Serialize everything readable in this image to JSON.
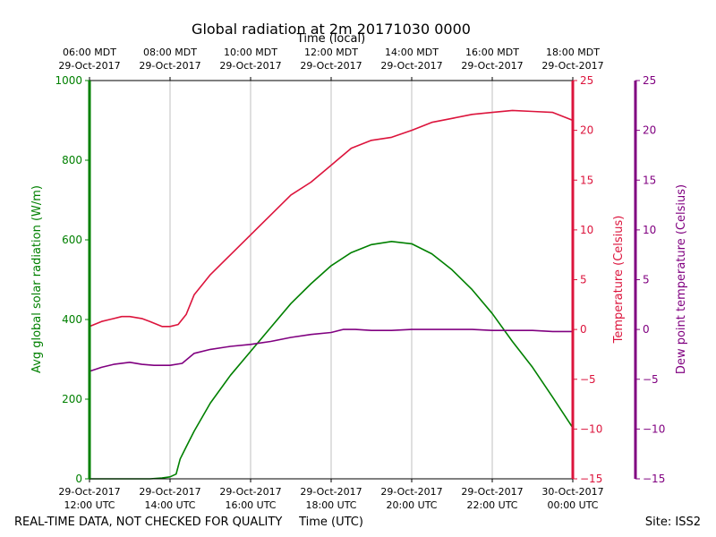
{
  "chart_data": {
    "type": "line",
    "title": "Global radiation at 2m 20171030 0000",
    "top_axis_label": "Time (local)",
    "xlabel": "Time (UTC)",
    "x_ticks_utc": [
      {
        "date": "29-Oct-2017",
        "time": "12:00 UTC"
      },
      {
        "date": "29-Oct-2017",
        "time": "14:00 UTC"
      },
      {
        "date": "29-Oct-2017",
        "time": "16:00 UTC"
      },
      {
        "date": "29-Oct-2017",
        "time": "18:00 UTC"
      },
      {
        "date": "29-Oct-2017",
        "time": "20:00 UTC"
      },
      {
        "date": "29-Oct-2017",
        "time": "22:00 UTC"
      },
      {
        "date": "30-Oct-2017",
        "time": "00:00 UTC"
      }
    ],
    "x_ticks_local": [
      {
        "time": "06:00 MDT",
        "date": "29-Oct-2017"
      },
      {
        "time": "08:00 MDT",
        "date": "29-Oct-2017"
      },
      {
        "time": "10:00 MDT",
        "date": "29-Oct-2017"
      },
      {
        "time": "12:00 MDT",
        "date": "29-Oct-2017"
      },
      {
        "time": "14:00 MDT",
        "date": "29-Oct-2017"
      },
      {
        "time": "16:00 MDT",
        "date": "29-Oct-2017"
      },
      {
        "time": "18:00 MDT",
        "date": "29-Oct-2017"
      }
    ],
    "xlim_hours_utc": [
      12,
      24
    ],
    "vertical_grid": true,
    "axes": {
      "radiation": {
        "label": "Avg global solar radiation (W/m)",
        "ylim": [
          0,
          1000
        ],
        "ticks": [
          0,
          200,
          400,
          600,
          800,
          1000
        ],
        "color": "#008000"
      },
      "temperature": {
        "label": "Temperature (Celsius)",
        "ylim": [
          -15,
          25
        ],
        "ticks": [
          -15,
          -10,
          -5,
          0,
          5,
          10,
          15,
          20,
          25
        ],
        "color": "#dc143c"
      },
      "dewpoint": {
        "label": "Dew point temperature (Celsius)",
        "ylim": [
          -15,
          25
        ],
        "ticks": [
          -15,
          -10,
          -5,
          0,
          5,
          10,
          15,
          20,
          25
        ],
        "color": "#800080"
      }
    },
    "series": [
      {
        "axis": "radiation",
        "color": "#008000",
        "x": [
          12,
          13.5,
          13.8,
          14.0,
          14.15,
          14.25,
          14.4,
          14.6,
          15.0,
          15.5,
          16.0,
          16.5,
          17.0,
          17.5,
          18.0,
          18.5,
          19.0,
          19.5,
          20.0,
          20.5,
          21.0,
          21.5,
          22.0,
          22.5,
          23.0,
          23.5,
          24.0
        ],
        "values": [
          0,
          0,
          2,
          5,
          12,
          50,
          80,
          120,
          190,
          260,
          320,
          380,
          440,
          490,
          535,
          568,
          588,
          596,
          590,
          565,
          525,
          475,
          415,
          345,
          280,
          205,
          128
        ]
      },
      {
        "axis": "temperature",
        "color": "#dc143c",
        "x": [
          12,
          12.3,
          12.5,
          12.8,
          13.0,
          13.3,
          13.5,
          13.8,
          14.0,
          14.2,
          14.4,
          14.6,
          14.8,
          15.0,
          15.5,
          16.0,
          16.5,
          17.0,
          17.5,
          18.0,
          18.5,
          19.0,
          19.5,
          20.0,
          20.5,
          21.0,
          21.5,
          22.0,
          22.5,
          23.0,
          23.5,
          24.0
        ],
        "values": [
          0.3,
          0.8,
          1.0,
          1.3,
          1.3,
          1.1,
          0.8,
          0.3,
          0.3,
          0.5,
          1.5,
          3.5,
          4.5,
          5.5,
          7.5,
          9.5,
          11.5,
          13.5,
          14.8,
          16.5,
          18.2,
          19.0,
          19.3,
          20.0,
          20.8,
          21.2,
          21.6,
          21.8,
          22.0,
          21.9,
          21.8,
          21.0
        ]
      },
      {
        "axis": "dewpoint",
        "color": "#800080",
        "x": [
          12,
          12.3,
          12.6,
          13.0,
          13.3,
          13.6,
          14.0,
          14.3,
          14.6,
          15.0,
          15.5,
          16.0,
          16.5,
          17.0,
          17.5,
          18.0,
          18.3,
          18.6,
          19.0,
          19.5,
          20.0,
          20.5,
          21.0,
          21.5,
          22.0,
          22.5,
          23.0,
          23.5,
          24.0
        ],
        "values": [
          -4.2,
          -3.8,
          -3.5,
          -3.3,
          -3.5,
          -3.6,
          -3.6,
          -3.4,
          -2.4,
          -2.0,
          -1.7,
          -1.5,
          -1.2,
          -0.8,
          -0.5,
          -0.3,
          0.0,
          0.0,
          -0.1,
          -0.1,
          0.0,
          0.0,
          0.0,
          0.0,
          -0.1,
          -0.1,
          -0.1,
          -0.2,
          -0.2
        ]
      }
    ]
  },
  "footer": {
    "disclaimer": "REAL-TIME DATA, NOT CHECKED FOR QUALITY",
    "site": "Site: ISS2"
  }
}
